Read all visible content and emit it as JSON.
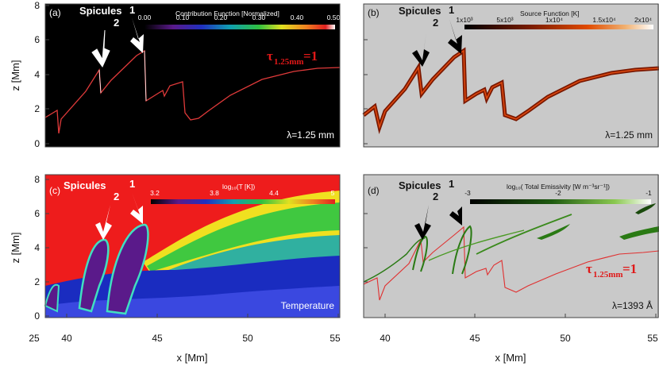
{
  "figure": {
    "y_axis_label": "z [Mm]",
    "x_axis_label": "x [Mm]",
    "y_ticks": [
      "0",
      "2",
      "4",
      "6",
      "8"
    ],
    "x_ticks_left": [
      "25",
      "40",
      "45",
      "50",
      "55"
    ],
    "x_ticks_right": [
      "40",
      "45",
      "50",
      "55"
    ]
  },
  "panels": [
    {
      "tag": "(a)",
      "spicule_title": "Spicules",
      "spicule_1": "1",
      "spicule_2": "2",
      "colorbar_title": "Contribution Function [Normalized]",
      "colorbar_ticks": [
        "0.00",
        "0.10",
        "0.20",
        "0.30",
        "0.40",
        "0.50"
      ],
      "wavelength": "λ=1.25 mm",
      "tau_main": "τ",
      "tau_sub": "1.25mm",
      "tau_eq": "=1"
    },
    {
      "tag": "(b)",
      "spicule_title": "Spicules",
      "spicule_1": "1",
      "spicule_2": "2",
      "colorbar_title": "Source Function [K]",
      "colorbar_ticks": [
        "1x10³",
        "5x10³",
        "1x10⁴",
        "1.5x10⁴",
        "2x10⁴"
      ],
      "wavelength": "λ=1.25 mm"
    },
    {
      "tag": "(c)",
      "spicule_title": "Spicules",
      "spicule_1": "1",
      "spicule_2": "2",
      "colorbar_title": "log₁₀(T [K])",
      "colorbar_ticks": [
        "3.2",
        "3.8",
        "4.4",
        "5"
      ],
      "corner_label": "Temperature"
    },
    {
      "tag": "(d)",
      "spicule_title": "Spicules",
      "spicule_1": "1",
      "spicule_2": "2",
      "colorbar_title": "log₁₀( Total Emissivity [W m⁻³sr⁻¹])",
      "colorbar_ticks": [
        "-3",
        "-2",
        "-1"
      ],
      "wavelength": "λ=1393 Å",
      "tau_main": "τ",
      "tau_sub": "1.25mm",
      "tau_eq": "=1"
    }
  ]
}
